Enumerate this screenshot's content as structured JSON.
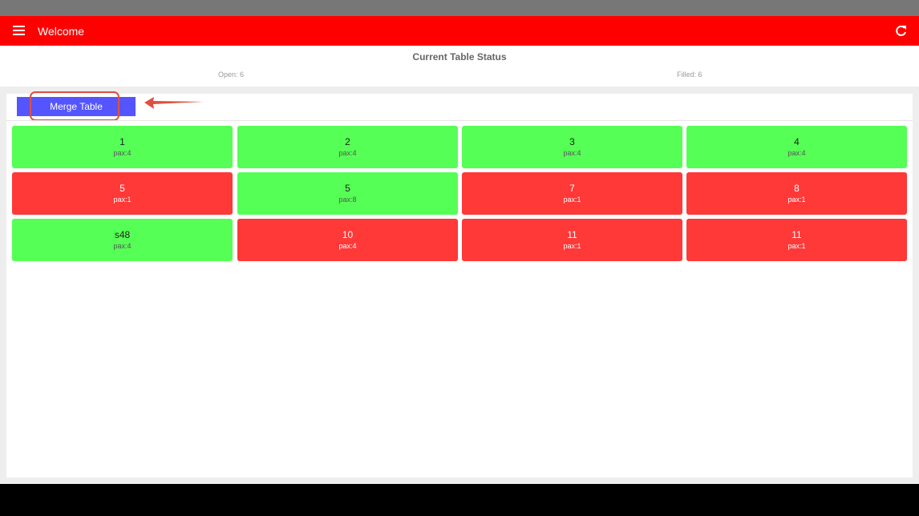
{
  "header": {
    "title": "Welcome"
  },
  "status": {
    "title": "Current Table Status",
    "open": "Open: 6",
    "filled": "Filled: 6"
  },
  "merge_button": {
    "label": "Merge Table"
  },
  "tables": [
    {
      "name": "1",
      "pax": "pax:4",
      "color": "#55ff55"
    },
    {
      "name": "2",
      "pax": "pax:4",
      "color": "#55ff55"
    },
    {
      "name": "3",
      "pax": "pax:4",
      "color": "#55ff55"
    },
    {
      "name": "4",
      "pax": "pax:4",
      "color": "#55ff55"
    },
    {
      "name": "5",
      "pax": "pax:1",
      "color": "#ff3838"
    },
    {
      "name": "5",
      "pax": "pax:8",
      "color": "#55ff55"
    },
    {
      "name": "7",
      "pax": "pax:1",
      "color": "#ff3838"
    },
    {
      "name": "8",
      "pax": "pax:1",
      "color": "#ff3838"
    },
    {
      "name": "s48",
      "pax": "pax:4",
      "color": "#55ff55"
    },
    {
      "name": "10",
      "pax": "pax:4",
      "color": "#ff3838"
    },
    {
      "name": "11",
      "pax": "pax:1",
      "color": "#ff3838"
    },
    {
      "name": "11",
      "pax": "pax:1",
      "color": "#ff3838"
    }
  ]
}
